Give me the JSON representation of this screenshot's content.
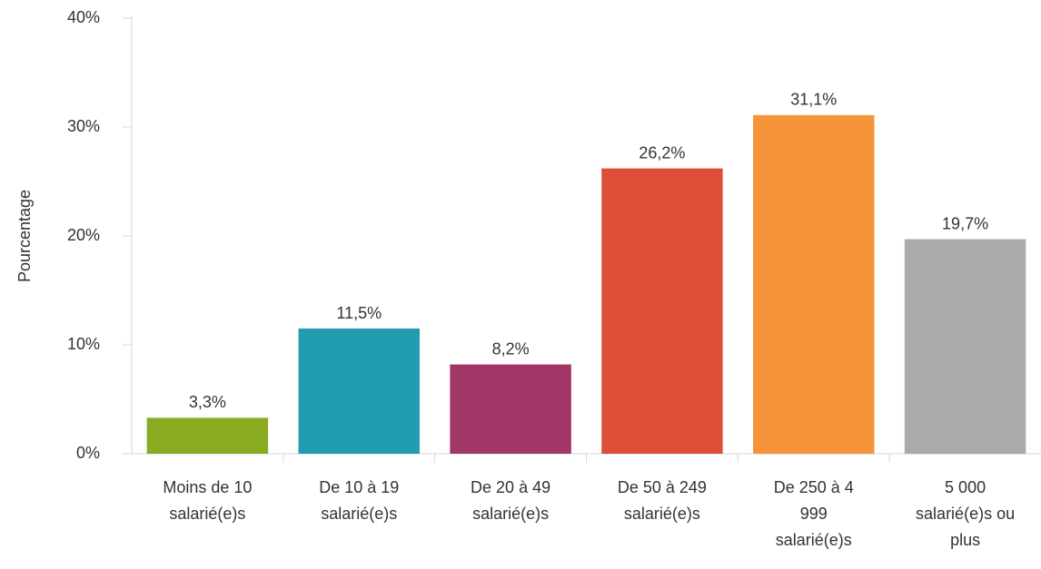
{
  "chart_data": {
    "type": "bar",
    "y_axis_label": "Pourcentage",
    "categories": [
      "Moins de 10 salarié(e)s",
      "De 10 à 19 salarié(e)s",
      "De 20 à 49 salarié(e)s",
      "De 50 à 249 salarié(e)s",
      "De 250 à 4 999 salarié(e)s",
      "5 000 salarié(e)s ou plus"
    ],
    "values": [
      3.3,
      11.5,
      8.2,
      26.2,
      31.1,
      19.7
    ],
    "value_labels": [
      "3,3%",
      "11,5%",
      "8,2%",
      "26,2%",
      "31,1%",
      "19,7%"
    ],
    "colors": [
      "#8aab21",
      "#219daf",
      "#a03766",
      "#de4f37",
      "#f7943a",
      "#aaaaaa"
    ],
    "ylim": [
      0,
      40
    ],
    "yticks": [
      {
        "value": 0,
        "label": "0%"
      },
      {
        "value": 10,
        "label": "10%"
      },
      {
        "value": 20,
        "label": "20%"
      },
      {
        "value": 30,
        "label": "30%"
      },
      {
        "value": 40,
        "label": "40%"
      }
    ],
    "grid": false
  }
}
